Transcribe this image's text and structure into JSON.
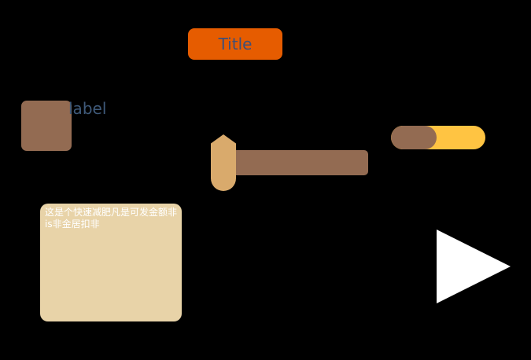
{
  "header": {
    "title": "Title"
  },
  "form": {
    "label": "label"
  },
  "slider": {
    "value_fraction": 0.1
  },
  "toggle": {
    "fill_fraction": 0.48
  },
  "card": {
    "text": "这是个快速减肥凡是可发金额非is非金居扣非"
  },
  "icons": {
    "play": "play-icon"
  },
  "colors": {
    "background": "#000000",
    "title_button_bg": "#e65c00",
    "title_text": "#3f4f78",
    "avatar": "#936b52",
    "label_text": "#3f5a7a",
    "slider_track": "#936b52",
    "slider_handle": "#d9aa6c",
    "toggle_bg": "#ffc442",
    "toggle_fill": "#936b52",
    "card_bg": "#e8d3a8",
    "card_text": "#ffffff",
    "play": "#ffffff"
  }
}
